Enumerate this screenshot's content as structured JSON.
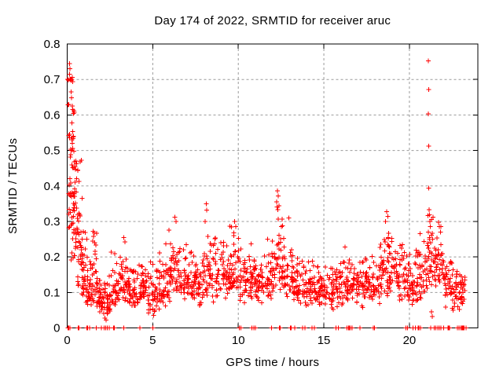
{
  "chart_data": {
    "type": "scatter",
    "title": "Day 174 of 2022, SRMTID for receiver aruc",
    "xlabel": "GPS time / hours",
    "ylabel": "SRMTID / TECUs",
    "xlim": [
      0,
      24
    ],
    "ylim": [
      0,
      0.8
    ],
    "xticks": [
      0,
      5,
      10,
      15,
      20
    ],
    "xtick_labels": [
      "0",
      "5",
      "10",
      "15",
      "20"
    ],
    "yticks": [
      0,
      0.1,
      0.2,
      0.3,
      0.4,
      0.5,
      0.6,
      0.7,
      0.8
    ],
    "ytick_labels": [
      "0",
      "0.1",
      "0.2",
      "0.3",
      "0.4",
      "0.5",
      "0.6",
      "0.7",
      "0.8"
    ],
    "grid": true,
    "legend": "none",
    "marker": "plus",
    "marker_color": "#ff0000",
    "grid_color": "#9a9a9a",
    "frame_color": "#000000",
    "text_color": "#000000",
    "band_bins": [
      [
        0.08,
        0.45,
        0.38,
        0.3,
        0.56,
        40
      ],
      [
        0.35,
        0.7,
        0.3,
        0.3,
        0.5,
        34
      ],
      [
        0.6,
        0.95,
        0.2,
        0.32,
        0.42,
        30
      ],
      [
        0.9,
        1.2,
        0.15,
        0.3,
        0.29,
        26
      ],
      [
        1.15,
        1.55,
        0.105,
        0.28,
        0.2,
        30
      ],
      [
        1.45,
        1.75,
        0.155,
        0.38,
        0.275,
        18
      ],
      [
        1.7,
        2.05,
        0.085,
        0.25,
        0.14,
        30
      ],
      [
        2.0,
        2.5,
        0.07,
        0.33,
        0.13,
        36
      ],
      [
        2.45,
        3.0,
        0.1,
        0.3,
        0.22,
        38
      ],
      [
        3.0,
        3.6,
        0.125,
        0.28,
        0.25,
        44
      ],
      [
        3.6,
        4.2,
        0.1,
        0.27,
        0.17,
        44
      ],
      [
        4.2,
        4.75,
        0.115,
        0.25,
        0.18,
        40
      ],
      [
        4.75,
        5.3,
        0.085,
        0.33,
        0.27,
        40
      ],
      [
        5.3,
        6.0,
        0.125,
        0.3,
        0.28,
        50
      ],
      [
        6.0,
        6.6,
        0.165,
        0.28,
        0.31,
        46
      ],
      [
        6.6,
        7.1,
        0.135,
        0.27,
        0.25,
        38
      ],
      [
        7.1,
        7.6,
        0.14,
        0.28,
        0.3,
        38
      ],
      [
        7.6,
        8.2,
        0.115,
        0.28,
        0.22,
        44
      ],
      [
        8.2,
        8.9,
        0.15,
        0.28,
        0.3,
        50
      ],
      [
        8.9,
        9.5,
        0.145,
        0.27,
        0.27,
        44
      ],
      [
        9.5,
        10.1,
        0.16,
        0.28,
        0.3,
        44
      ],
      [
        10.1,
        10.9,
        0.135,
        0.27,
        0.24,
        56
      ],
      [
        10.9,
        11.6,
        0.125,
        0.27,
        0.22,
        50
      ],
      [
        11.6,
        12.1,
        0.145,
        0.27,
        0.26,
        36
      ],
      [
        12.1,
        12.6,
        0.185,
        0.3,
        0.37,
        38
      ],
      [
        12.6,
        13.2,
        0.15,
        0.28,
        0.3,
        42
      ],
      [
        13.2,
        14.0,
        0.115,
        0.27,
        0.2,
        56
      ],
      [
        14.0,
        14.7,
        0.115,
        0.26,
        0.19,
        50
      ],
      [
        14.7,
        15.5,
        0.105,
        0.26,
        0.18,
        56
      ],
      [
        15.5,
        16.2,
        0.115,
        0.26,
        0.2,
        50
      ],
      [
        16.2,
        17.0,
        0.125,
        0.27,
        0.23,
        56
      ],
      [
        17.0,
        17.8,
        0.115,
        0.26,
        0.2,
        56
      ],
      [
        17.8,
        18.5,
        0.135,
        0.27,
        0.24,
        50
      ],
      [
        18.5,
        19.2,
        0.165,
        0.28,
        0.315,
        50
      ],
      [
        19.2,
        19.8,
        0.135,
        0.27,
        0.25,
        42
      ],
      [
        19.8,
        20.5,
        0.125,
        0.27,
        0.22,
        50
      ],
      [
        20.5,
        21.05,
        0.15,
        0.28,
        0.27,
        36
      ],
      [
        21.05,
        21.45,
        0.19,
        0.33,
        0.33,
        30
      ],
      [
        21.45,
        22.0,
        0.165,
        0.28,
        0.295,
        40
      ],
      [
        22.0,
        22.6,
        0.125,
        0.26,
        0.19,
        42
      ],
      [
        22.6,
        23.25,
        0.11,
        0.28,
        0.17,
        46
      ]
    ],
    "peak_points": [
      [
        0.03,
        0.7
      ],
      [
        0.06,
        0.698
      ],
      [
        0.05,
        0.628
      ],
      [
        0.1,
        0.63
      ],
      [
        0.13,
        0.745
      ],
      [
        0.15,
        0.73
      ],
      [
        0.14,
        0.715
      ],
      [
        0.17,
        0.7
      ],
      [
        0.2,
        0.702
      ],
      [
        0.23,
        0.697
      ],
      [
        0.26,
        0.7
      ],
      [
        0.29,
        0.706
      ],
      [
        0.32,
        0.694
      ],
      [
        0.22,
        0.665
      ],
      [
        0.26,
        0.648
      ],
      [
        0.3,
        0.625
      ],
      [
        0.33,
        0.615
      ],
      [
        0.36,
        0.604
      ],
      [
        0.39,
        0.612
      ],
      [
        0.42,
        0.607
      ],
      [
        0.28,
        0.578
      ],
      [
        0.33,
        0.553
      ],
      [
        0.37,
        0.54
      ],
      [
        0.3,
        0.52
      ],
      [
        0.26,
        0.5
      ],
      [
        0.33,
        0.506
      ],
      [
        0.38,
        0.498
      ],
      [
        0.21,
        0.488
      ],
      [
        0.42,
        0.468
      ],
      [
        0.45,
        0.455
      ],
      [
        0.5,
        0.47
      ],
      [
        0.55,
        0.462
      ],
      [
        0.75,
        0.468
      ],
      [
        0.82,
        0.472
      ],
      [
        1.52,
        0.272
      ],
      [
        1.55,
        0.258
      ],
      [
        1.58,
        0.268
      ],
      [
        1.5,
        0.245
      ],
      [
        1.6,
        0.24
      ],
      [
        2.2,
        0.028
      ],
      [
        2.28,
        0.022
      ],
      [
        2.35,
        0.04
      ],
      [
        3.3,
        0.255
      ],
      [
        3.38,
        0.242
      ],
      [
        5.05,
        0.035
      ],
      [
        5.12,
        0.05
      ],
      [
        6.3,
        0.312
      ],
      [
        6.36,
        0.3
      ],
      [
        8.12,
        0.35
      ],
      [
        8.16,
        0.332
      ],
      [
        8.05,
        0.3
      ],
      [
        9.78,
        0.3
      ],
      [
        9.86,
        0.285
      ],
      [
        12.28,
        0.386
      ],
      [
        12.33,
        0.372
      ],
      [
        12.24,
        0.355
      ],
      [
        12.37,
        0.344
      ],
      [
        12.3,
        0.333
      ],
      [
        12.95,
        0.31
      ],
      [
        18.68,
        0.328
      ],
      [
        18.74,
        0.314
      ],
      [
        18.6,
        0.3
      ],
      [
        21.1,
        0.752
      ],
      [
        21.13,
        0.672
      ],
      [
        21.11,
        0.603
      ],
      [
        21.14,
        0.512
      ],
      [
        21.12,
        0.394
      ],
      [
        21.16,
        0.333
      ],
      [
        21.08,
        0.316
      ],
      [
        21.19,
        0.3
      ],
      [
        21.22,
        0.286
      ],
      [
        21.1,
        0.27
      ],
      [
        21.17,
        0.254
      ],
      [
        21.24,
        0.24
      ],
      [
        21.12,
        0.225
      ],
      [
        21.3,
        0.045
      ],
      [
        21.34,
        0.032
      ],
      [
        21.7,
        0.298
      ],
      [
        21.76,
        0.285
      ],
      [
        21.82,
        0.27
      ],
      [
        22.5,
        0.055
      ],
      [
        22.56,
        0.05
      ],
      [
        22.62,
        0.06
      ]
    ],
    "zero_points": [
      0.05,
      0.1,
      0.15,
      0.65,
      0.7,
      1.15,
      1.2,
      1.3,
      1.7,
      2.0,
      2.15,
      2.25,
      2.35,
      2.45,
      2.7,
      2.75,
      3.3,
      4.25,
      5.0,
      10.05,
      10.15,
      10.8,
      10.9,
      11.0,
      11.95,
      12.4,
      12.45,
      13.05,
      13.1,
      13.3,
      13.75,
      13.9,
      14.3,
      14.45,
      15.7,
      15.85,
      16.35,
      16.45,
      16.5,
      16.55,
      16.65,
      17.1,
      17.9,
      17.95,
      19.8,
      19.9,
      20.2,
      20.35,
      20.5,
      20.55,
      20.65,
      21.25,
      21.45,
      21.55,
      21.65,
      21.75,
      21.85,
      22.0,
      22.25,
      22.3,
      22.35,
      22.8,
      22.9,
      23.0,
      23.05,
      23.1,
      23.15,
      23.2,
      23.3
    ]
  }
}
